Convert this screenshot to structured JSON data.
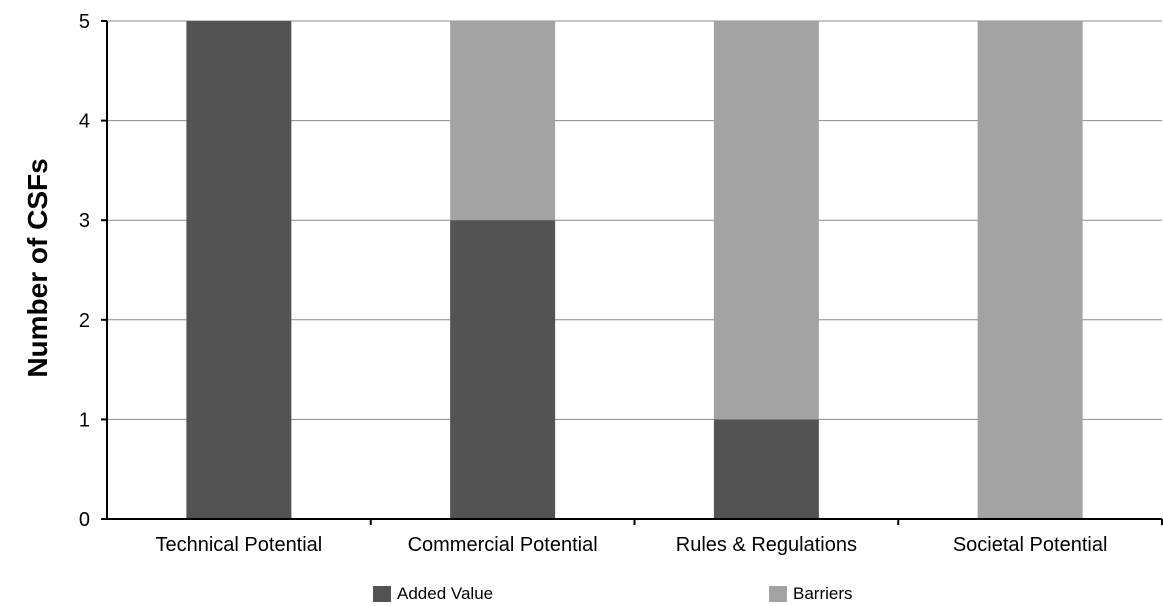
{
  "chart_data": {
    "type": "bar",
    "stacked": true,
    "categories": [
      "Technical Potential",
      "Commercial Potential",
      "Rules & Regulations",
      "Societal Potential"
    ],
    "series": [
      {
        "name": "Added Value",
        "values": [
          5,
          3,
          1,
          0
        ],
        "color": "#535353"
      },
      {
        "name": "Barriers",
        "values": [
          0,
          2,
          4,
          5
        ],
        "color": "#a3a3a3"
      }
    ],
    "title": "",
    "xlabel": "",
    "ylabel": "Number of CSFs",
    "ylim": [
      0,
      5
    ],
    "yticks": [
      "0",
      "1",
      "2",
      "3",
      "4",
      "5"
    ],
    "grid": true,
    "legend_position": "bottom"
  }
}
